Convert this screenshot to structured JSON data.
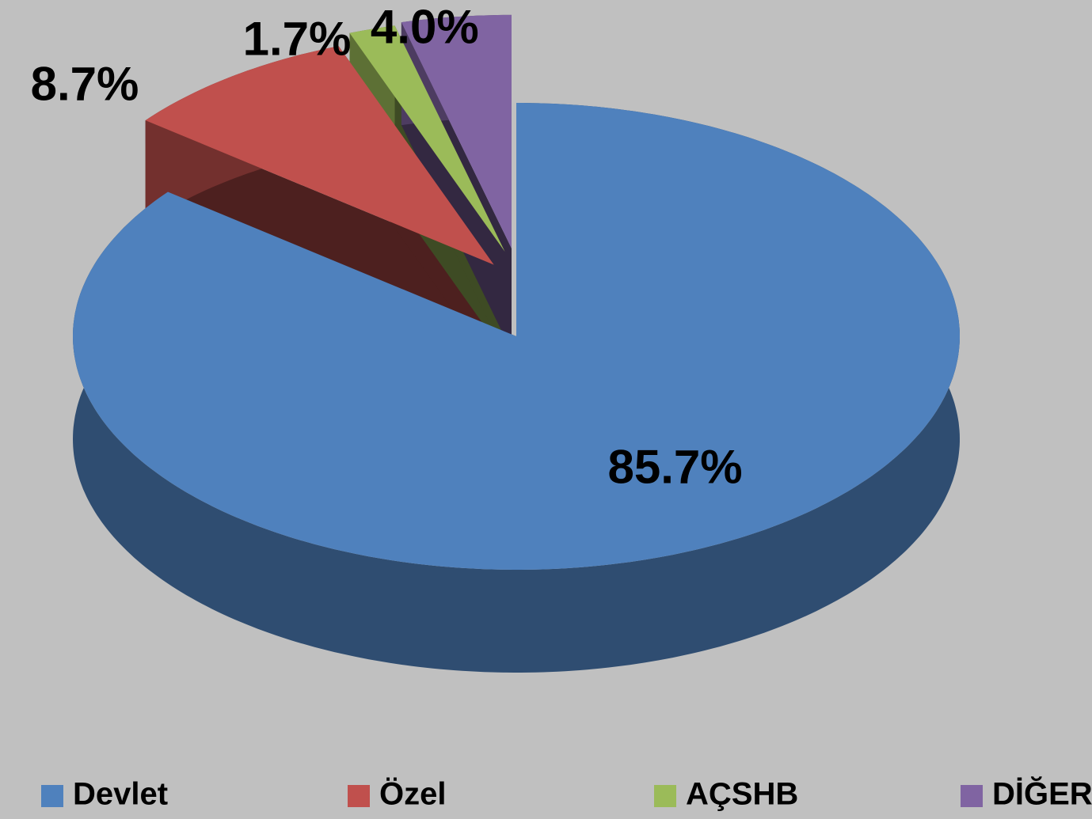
{
  "chart_data": {
    "type": "pie",
    "categories": [
      "Devlet",
      "Özel",
      "AÇSHB",
      "DİĞER"
    ],
    "values": [
      85.7,
      8.7,
      1.7,
      4.0
    ],
    "value_labels": [
      "85.7%",
      "8.7%",
      "1.7%",
      "4.0%"
    ],
    "colors": [
      "#4f81bd",
      "#c0504d",
      "#9bbb59",
      "#8064a2"
    ],
    "legend": "bottom"
  }
}
